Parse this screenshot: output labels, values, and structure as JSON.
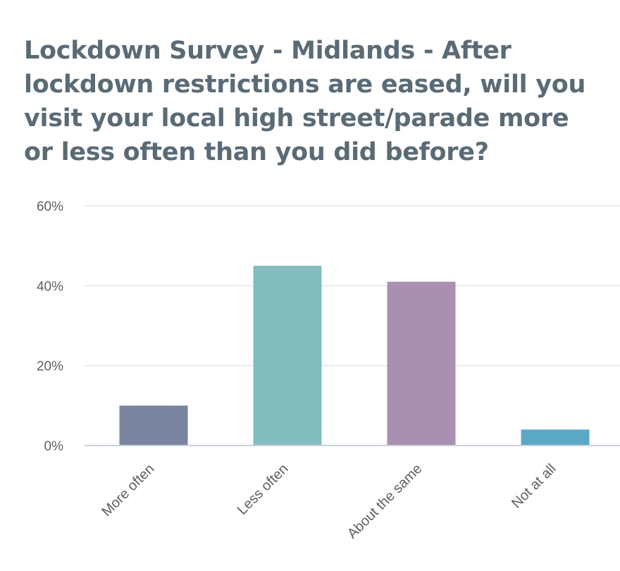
{
  "chart_data": {
    "type": "bar",
    "title": "Lockdown Survey - Midlands - After lockdown restrictions are eased, will you visit your local high street/parade more or less often than you did before?",
    "categories": [
      "More often",
      "Less often",
      "About the same",
      "Not at all"
    ],
    "values": [
      10,
      45,
      41,
      4
    ],
    "colors": [
      "#7a849f",
      "#83bdbe",
      "#a98fb0",
      "#5aa8c6"
    ],
    "y_ticks": [
      "0%",
      "20%",
      "40%",
      "60%"
    ],
    "ylim": [
      0,
      60
    ],
    "grid": true,
    "legend": "none",
    "xlabel": "",
    "ylabel": ""
  }
}
